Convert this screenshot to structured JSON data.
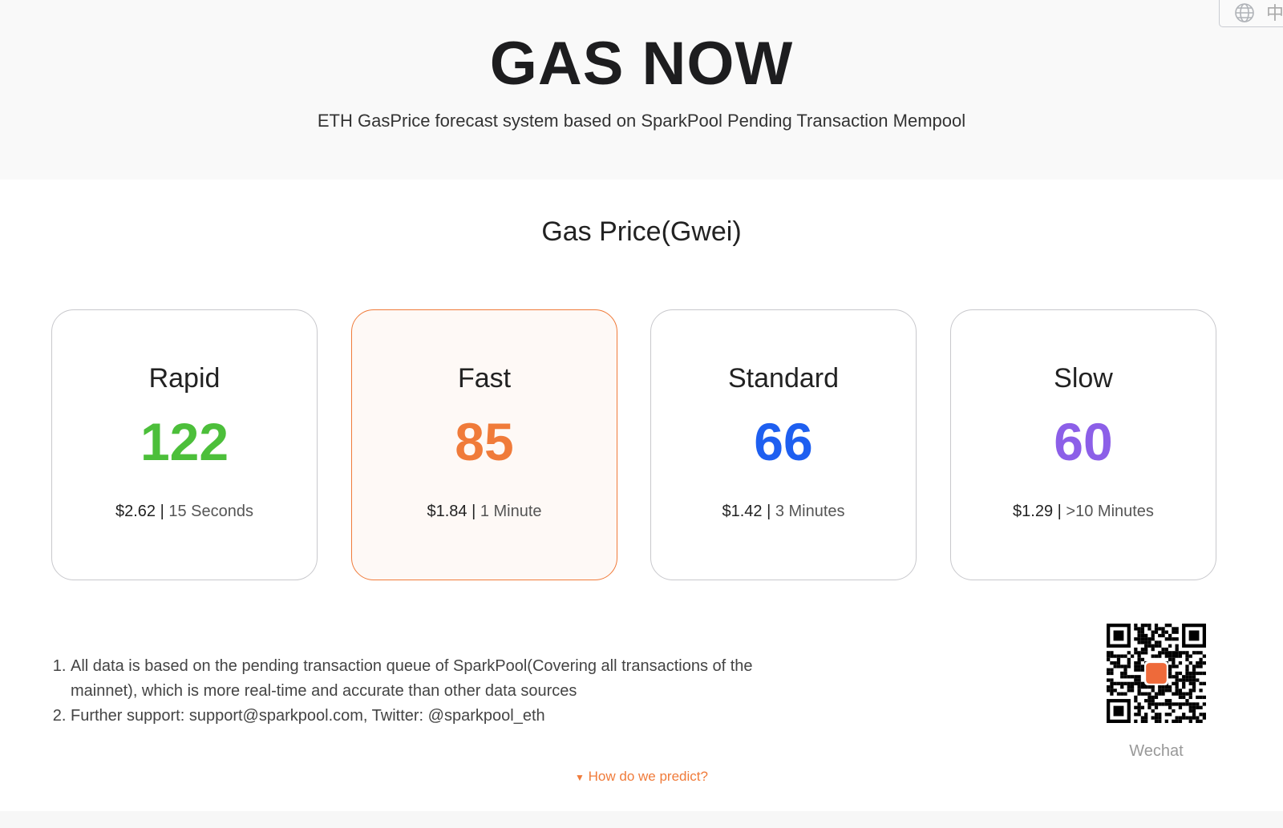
{
  "header": {
    "title": "GAS NOW",
    "subtitle": "ETH GasPrice forecast system based on SparkPool Pending Transaction Mempool",
    "language_label": "中",
    "language_icon": "globe-icon"
  },
  "section_title": "Gas Price(Gwei)",
  "cards": [
    {
      "level": "Rapid",
      "price": "122",
      "usd": "$2.62",
      "time": "15 Seconds",
      "color": "#4cbf3a"
    },
    {
      "level": "Fast",
      "price": "85",
      "usd": "$1.84",
      "time": "1 Minute",
      "color": "#f07b3a",
      "selected": true
    },
    {
      "level": "Standard",
      "price": "66",
      "usd": "$1.42",
      "time": "3 Minutes",
      "color": "#1e5ff0"
    },
    {
      "level": "Slow",
      "price": "60",
      "usd": "$1.29",
      "time": ">10 Minutes",
      "color": "#8c5fe8"
    }
  ],
  "notes": [
    "All data is based on the pending transaction queue of SparkPool(Covering all transactions of the mainnet), which is more real-time and accurate than other data sources",
    "Further support: support@sparkpool.com, Twitter: @sparkpool_eth"
  ],
  "qr_label": "Wechat",
  "predict_link": "How do we predict?",
  "colors": {
    "accent": "#f07b3a"
  }
}
